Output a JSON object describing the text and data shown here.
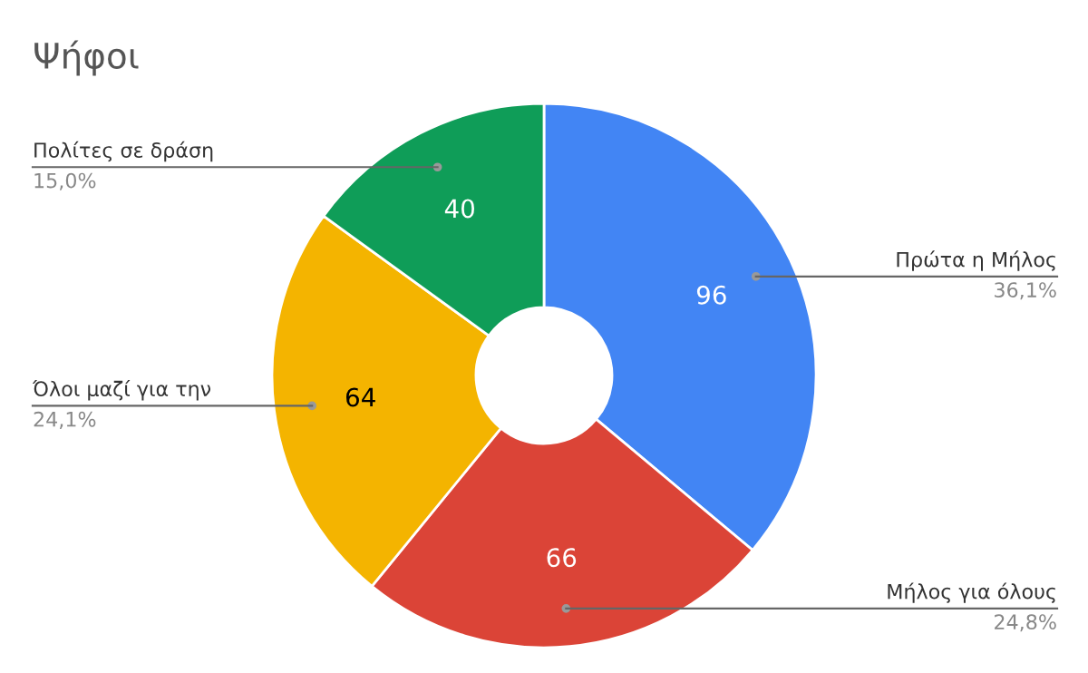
{
  "chart_data": {
    "type": "donut",
    "title": "Ψήφοι",
    "categories": [
      "Πρώτα η Μήλος",
      "Μήλος για όλους",
      "Όλοι μαζί για την",
      "Πολίτες σε δράση"
    ],
    "values": [
      96,
      66,
      64,
      40
    ],
    "colors": [
      "#4285f4",
      "#db4437",
      "#f4b400",
      "#0f9d58"
    ],
    "data_labels": true,
    "annotations": [
      "36,1%",
      "24,8%",
      "24,1%",
      "15,0%"
    ]
  }
}
